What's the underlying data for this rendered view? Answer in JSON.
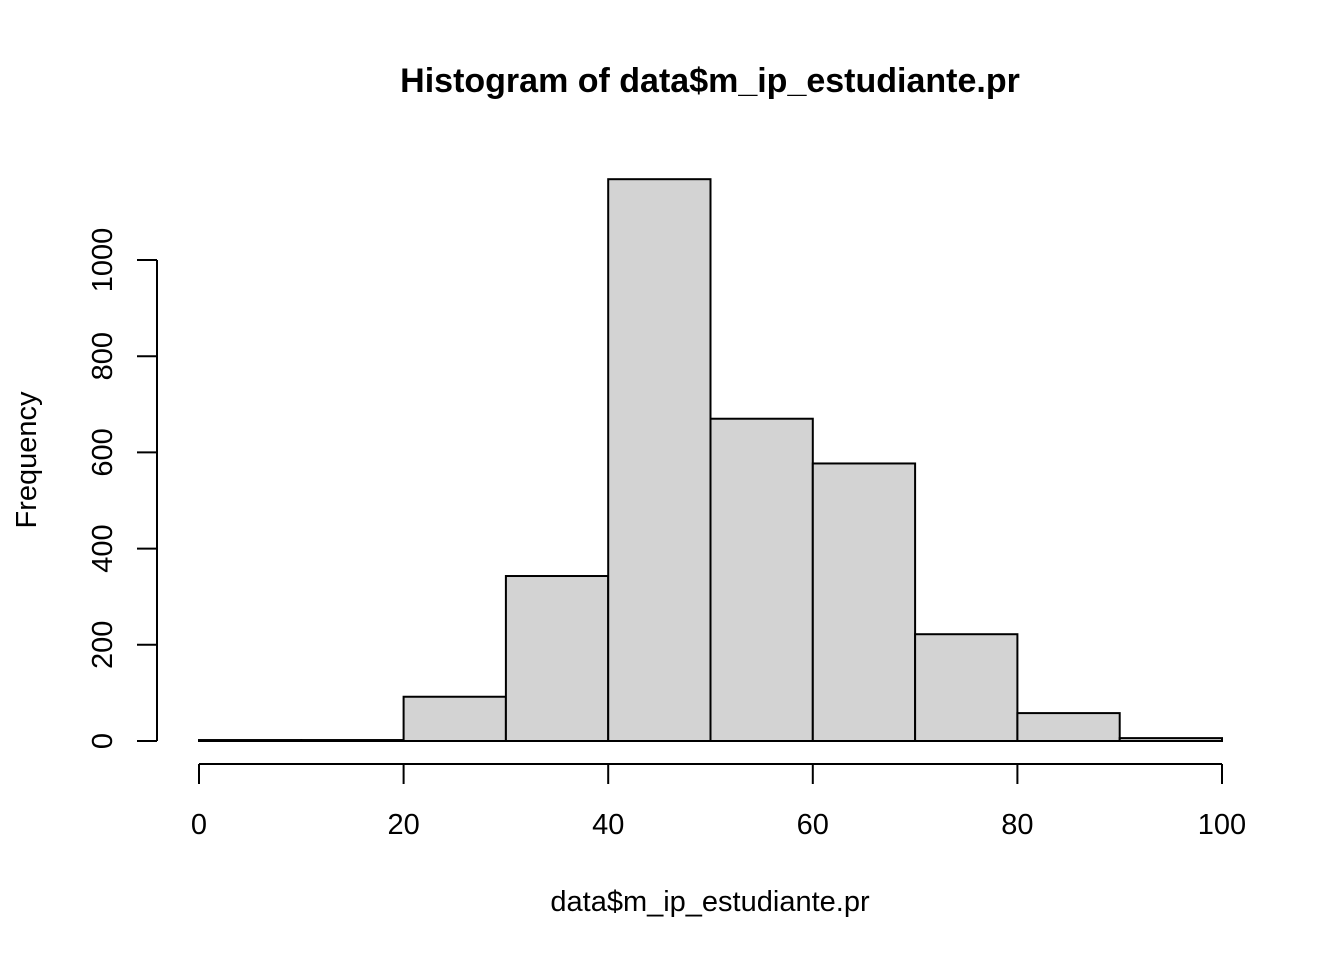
{
  "chart_data": {
    "type": "bar",
    "title": "Histogram of data$m_ip_estudiante.pr",
    "xlabel": "data$m_ip_estudiante.pr",
    "ylabel": "Frequency",
    "bins": [
      {
        "from": 0,
        "to": 10,
        "count": 2
      },
      {
        "from": 10,
        "to": 20,
        "count": 2
      },
      {
        "from": 20,
        "to": 30,
        "count": 92
      },
      {
        "from": 30,
        "to": 40,
        "count": 343
      },
      {
        "from": 40,
        "to": 50,
        "count": 1168
      },
      {
        "from": 50,
        "to": 60,
        "count": 670
      },
      {
        "from": 60,
        "to": 70,
        "count": 577
      },
      {
        "from": 70,
        "to": 80,
        "count": 222
      },
      {
        "from": 80,
        "to": 90,
        "count": 58
      },
      {
        "from": 90,
        "to": 100,
        "count": 6
      }
    ],
    "xlim": [
      0,
      100
    ],
    "ylim": [
      0,
      1200
    ],
    "x_ticks": [
      0,
      20,
      40,
      60,
      80,
      100
    ],
    "y_ticks": [
      0,
      200,
      400,
      600,
      800,
      1000
    ],
    "grid": false,
    "bar_color": "#d3d3d3"
  }
}
